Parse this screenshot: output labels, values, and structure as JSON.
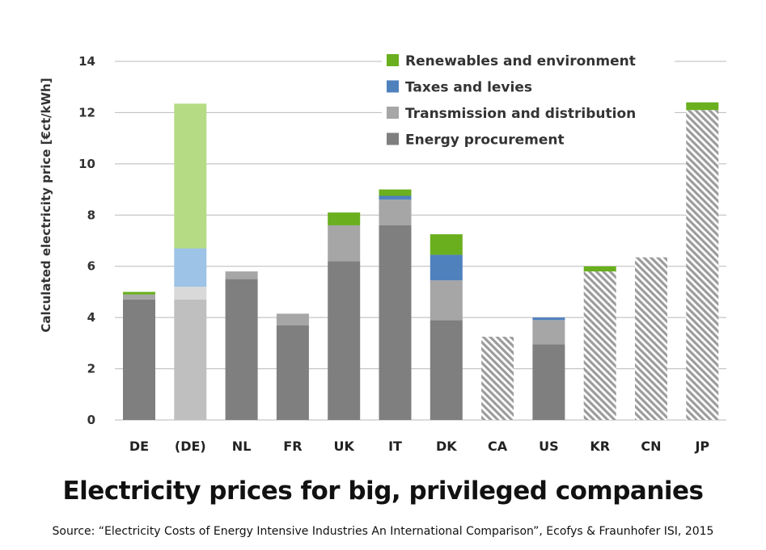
{
  "caption": {
    "title": "Electricity prices for big, privileged companies",
    "source": "Source: “Electricity Costs of Energy Intensive Industries An International Comparison”, Ecofys & Fraunhofer ISI, 2015"
  },
  "chart_data": {
    "type": "bar",
    "stacked": true,
    "ylabel": "Calculated electricity price [€ct/kWh]",
    "ylim": [
      0,
      14
    ],
    "yticks": [
      0,
      2,
      4,
      6,
      8,
      10,
      12,
      14
    ],
    "grid": true,
    "legend_position": "top-right",
    "categories": [
      "DE",
      "(DE)",
      "NL",
      "FR",
      "UK",
      "IT",
      "DK",
      "CA",
      "US",
      "KR",
      "CN",
      "JP"
    ],
    "series": [
      {
        "name": "Energy procurement",
        "color": "#7f7f7f",
        "values": [
          4.7,
          4.7,
          5.5,
          3.7,
          6.2,
          7.6,
          3.9,
          3.25,
          2.95,
          5.8,
          6.35,
          12.1
        ]
      },
      {
        "name": "Transmission and distribution",
        "color": "#a6a6a6",
        "values": [
          0.2,
          0.5,
          0.3,
          0.45,
          1.4,
          1.0,
          1.55,
          0,
          0.95,
          0,
          0,
          0
        ]
      },
      {
        "name": "Taxes and levies",
        "color": "#4f81bd",
        "values": [
          0,
          1.5,
          0,
          0,
          0,
          0.15,
          1.0,
          0,
          0.1,
          0,
          0,
          0
        ]
      },
      {
        "name": "Renewables and environment",
        "color": "#6aaf1e",
        "values": [
          0.1,
          5.65,
          0,
          0,
          0.5,
          0.25,
          0.8,
          0,
          0,
          0.2,
          0,
          0.3
        ]
      }
    ],
    "highlighted_category": "(DE)",
    "hatched_categories": [
      "CA",
      "KR",
      "CN",
      "JP"
    ],
    "highlight_colors": [
      "#bfbfbf",
      "#d9d9d9",
      "#9dc3e6",
      "#b5dc84"
    ],
    "hatch_color": "#9c9c9c"
  }
}
